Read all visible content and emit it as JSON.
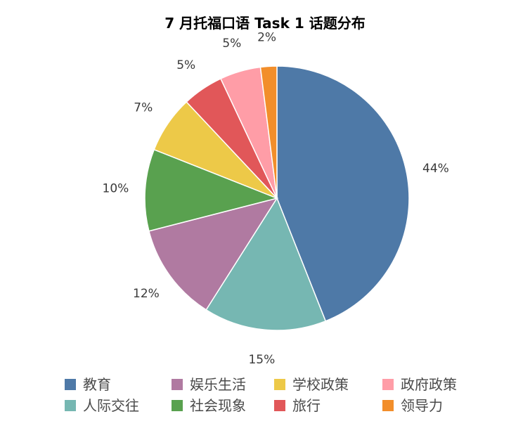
{
  "chart_data": {
    "type": "pie",
    "title": "7 月托福口语 Task 1 话题分布",
    "categories": [
      "教育",
      "人际交往",
      "娱乐生活",
      "社会现象",
      "学校政策",
      "旅行",
      "政府政策",
      "领导力"
    ],
    "values": [
      44,
      15,
      12,
      10,
      7,
      5,
      5,
      2
    ],
    "value_labels": [
      "44%",
      "15%",
      "12%",
      "10%",
      "7%",
      "5%",
      "5%",
      "2%"
    ],
    "colors": [
      "#4E79A7",
      "#76B7B2",
      "#B07AA1",
      "#59A14F",
      "#EDC948",
      "#E15759",
      "#FF9DA7",
      "#F28E2B"
    ],
    "start": "12 o'clock",
    "direction": "clockwise",
    "legend": {
      "position": "bottom",
      "order": [
        "教育",
        "娱乐生活",
        "学校政策",
        "政府政策",
        "人际交往",
        "社会现象",
        "旅行",
        "领导力"
      ]
    }
  }
}
